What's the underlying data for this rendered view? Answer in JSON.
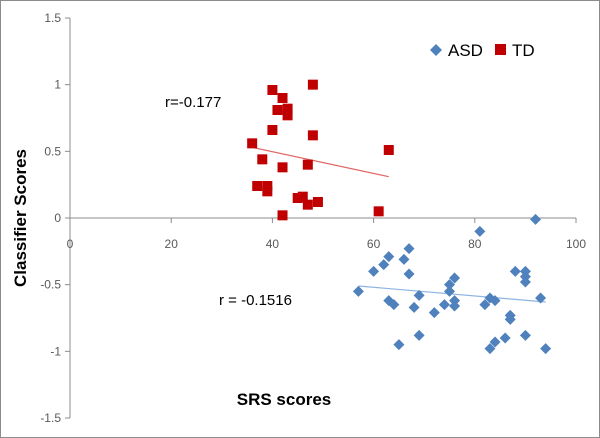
{
  "chart_data": {
    "type": "scatter",
    "xlabel": "SRS scores",
    "ylabel": "Classifier Scores",
    "xlim": [
      0,
      100
    ],
    "ylim": [
      -1.5,
      1.5
    ],
    "x_ticks": [
      0,
      20,
      40,
      60,
      80,
      100
    ],
    "y_ticks": [
      1.5,
      1,
      0.5,
      0,
      -0.5,
      -1,
      -1.5
    ],
    "y_tick_labels": [
      "1.5",
      "1",
      "0.5",
      "0",
      "-0.5",
      "-1",
      "-1.5"
    ],
    "legend_position": "top-right",
    "grid": false,
    "series": [
      {
        "name": "ASD",
        "marker": "diamond",
        "color": "#4f81bd",
        "trendline_color": "#8eb4e3",
        "annotation": "r = -0.1516",
        "trendline": [
          [
            57,
            -0.51
          ],
          [
            94,
            -0.63
          ]
        ],
        "points": [
          [
            57,
            -0.55
          ],
          [
            60,
            -0.4
          ],
          [
            62,
            -0.35
          ],
          [
            63,
            -0.29
          ],
          [
            64,
            -0.65
          ],
          [
            63,
            -0.62
          ],
          [
            65,
            -0.95
          ],
          [
            66,
            -0.31
          ],
          [
            67,
            -0.42
          ],
          [
            67,
            -0.23
          ],
          [
            68,
            -0.67
          ],
          [
            69,
            -0.58
          ],
          [
            69,
            -0.88
          ],
          [
            72,
            -0.71
          ],
          [
            74,
            -0.65
          ],
          [
            75,
            -0.55
          ],
          [
            75,
            -0.5
          ],
          [
            76,
            -0.45
          ],
          [
            76,
            -0.62
          ],
          [
            76,
            -0.66
          ],
          [
            81,
            -0.1
          ],
          [
            82,
            -0.65
          ],
          [
            83,
            -0.98
          ],
          [
            83,
            -0.6
          ],
          [
            84,
            -0.62
          ],
          [
            84,
            -0.93
          ],
          [
            86,
            -0.9
          ],
          [
            87,
            -0.73
          ],
          [
            87,
            -0.76
          ],
          [
            88,
            -0.4
          ],
          [
            90,
            -0.4
          ],
          [
            90,
            -0.44
          ],
          [
            90,
            -0.48
          ],
          [
            90,
            -0.88
          ],
          [
            92,
            -0.01
          ],
          [
            93,
            -0.6
          ],
          [
            94,
            -0.98
          ]
        ]
      },
      {
        "name": "TD",
        "marker": "square",
        "color": "#c00000",
        "trendline_color": "#e06666",
        "annotation": "r=-0.177",
        "trendline": [
          [
            36,
            0.53
          ],
          [
            63,
            0.31
          ]
        ],
        "points": [
          [
            36,
            0.56
          ],
          [
            37,
            0.24
          ],
          [
            38,
            0.44
          ],
          [
            39,
            0.24
          ],
          [
            39,
            0.2
          ],
          [
            40,
            0.96
          ],
          [
            40,
            0.66
          ],
          [
            41,
            0.81
          ],
          [
            42,
            0.9
          ],
          [
            42,
            0.38
          ],
          [
            42,
            0.02
          ],
          [
            43,
            0.82
          ],
          [
            43,
            0.77
          ],
          [
            45,
            0.15
          ],
          [
            46,
            0.16
          ],
          [
            47,
            0.4
          ],
          [
            47,
            0.1
          ],
          [
            48,
            1.0
          ],
          [
            48,
            0.62
          ],
          [
            49,
            0.12
          ],
          [
            61,
            0.05
          ],
          [
            63,
            0.51
          ]
        ]
      }
    ]
  }
}
